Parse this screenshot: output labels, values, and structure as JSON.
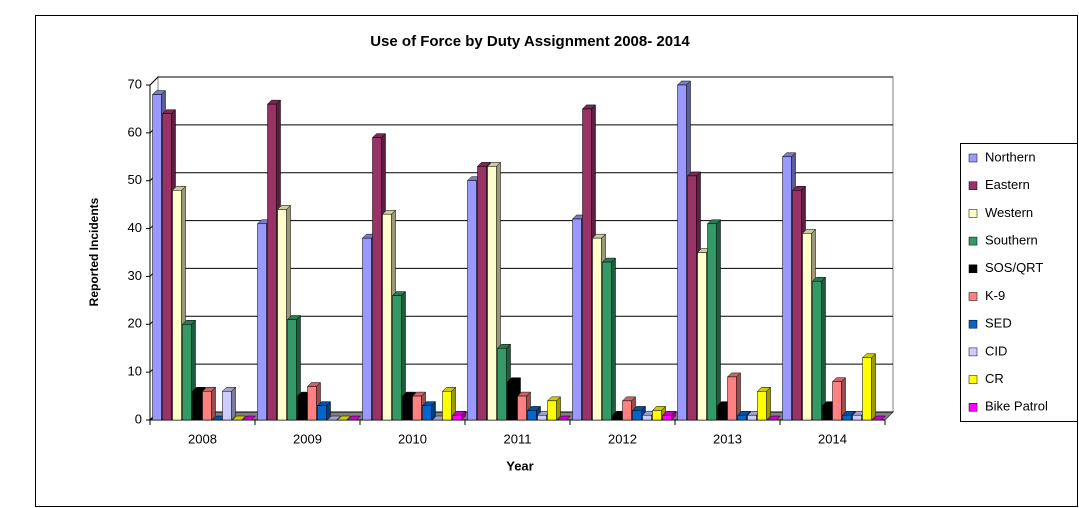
{
  "chart_data": {
    "type": "bar",
    "title": "Use of Force by Duty Assignment 2008- 2014",
    "x_label": "Year",
    "y_label": "Reported Incidents",
    "categories": [
      "2008",
      "2009",
      "2010",
      "2011",
      "2012",
      "2013",
      "2014"
    ],
    "series": [
      {
        "name": "Northern",
        "color": "#9999ff",
        "values": [
          68,
          41,
          38,
          50,
          42,
          70,
          55
        ]
      },
      {
        "name": "Eastern",
        "color": "#993366",
        "values": [
          64,
          66,
          59,
          53,
          65,
          51,
          48
        ]
      },
      {
        "name": "Western",
        "color": "#ffffcc",
        "values": [
          48,
          44,
          43,
          53,
          38,
          35,
          39
        ]
      },
      {
        "name": "Southern",
        "color": "#339966",
        "values": [
          20,
          21,
          26,
          15,
          33,
          41,
          29
        ]
      },
      {
        "name": "SOS/QRT",
        "color": "#000000",
        "values": [
          6,
          5,
          5,
          8,
          1,
          3,
          3
        ]
      },
      {
        "name": "K-9",
        "color": "#ff8080",
        "values": [
          6,
          7,
          5,
          5,
          4,
          9,
          8
        ]
      },
      {
        "name": "SED",
        "color": "#0066cc",
        "values": [
          0,
          3,
          3,
          2,
          2,
          1,
          1
        ]
      },
      {
        "name": "CID",
        "color": "#ccccff",
        "values": [
          6,
          0,
          0,
          1,
          1,
          1,
          1
        ]
      },
      {
        "name": "CR",
        "color": "#ffff00",
        "values": [
          0,
          0,
          6,
          4,
          2,
          6,
          13
        ]
      },
      {
        "name": "Bike Patrol",
        "color": "#ff00ff",
        "values": [
          0,
          0,
          1,
          0,
          1,
          0,
          0
        ]
      }
    ],
    "ylim": [
      0,
      70
    ],
    "yticks": [
      0,
      10,
      20,
      30,
      40,
      50,
      60,
      70
    ],
    "grid": true,
    "legend": "right"
  }
}
